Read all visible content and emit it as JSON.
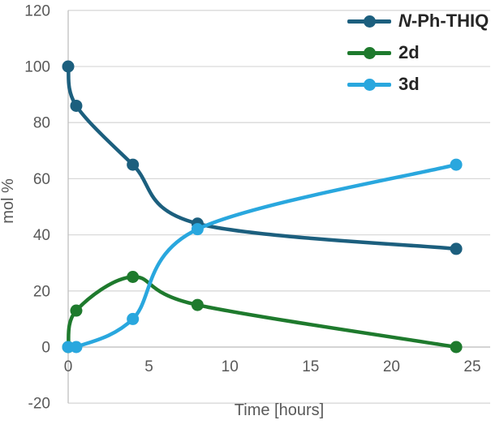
{
  "figure": {
    "background": "#FFFFFF",
    "grid_color": "#D9D9D9",
    "axis_line_color": "#C0C0C0",
    "tick_text_color": "#595959",
    "legend_text_color": "#262626"
  },
  "chart_data": {
    "type": "line",
    "title": "",
    "xlabel": "Time [hours]",
    "ylabel": "mol %",
    "xlim": [
      0,
      26.1
    ],
    "ylim": [
      -20,
      120
    ],
    "x_ticks": [
      0,
      5,
      10,
      15,
      20,
      25
    ],
    "y_ticks": [
      120,
      100,
      80,
      60,
      40,
      20,
      0,
      -20
    ],
    "grid": "horizontal",
    "legend_position": "top-right",
    "line_style": "smooth",
    "marker": "circle",
    "x": [
      0,
      0.5,
      4,
      8,
      24
    ],
    "series": [
      {
        "name": "N-Ph-THIQ",
        "label_italic": "N",
        "label_rest": "-Ph-THIQ",
        "color": "#1C5F7E",
        "values": [
          100,
          86,
          65,
          44,
          35
        ]
      },
      {
        "name": "2d",
        "label_italic": "",
        "label_rest": "2d",
        "color": "#1E7A2D",
        "values": [
          0,
          13,
          25,
          15,
          0
        ]
      },
      {
        "name": "3d",
        "label_italic": "",
        "label_rest": "3d",
        "color": "#29A7DE",
        "values": [
          0,
          0,
          10,
          42,
          65
        ]
      }
    ]
  }
}
